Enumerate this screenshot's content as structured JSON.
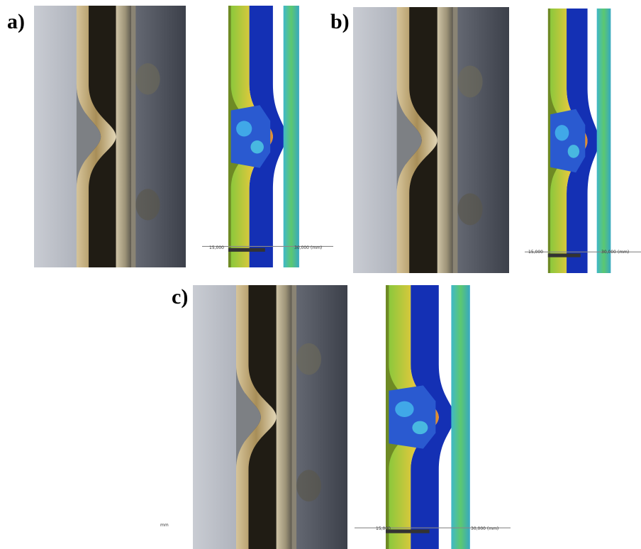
{
  "panels": [
    {
      "label": "a)",
      "scale_labels": [
        "15,000",
        "30,000 (mm)"
      ]
    },
    {
      "label": "b)",
      "scale_labels": [
        "15,000",
        "30,000 (mm)"
      ]
    },
    {
      "label": "c)",
      "scale_labels": [
        "15,000",
        "30,000 (mm)"
      ]
    }
  ],
  "stray_text": "mm"
}
